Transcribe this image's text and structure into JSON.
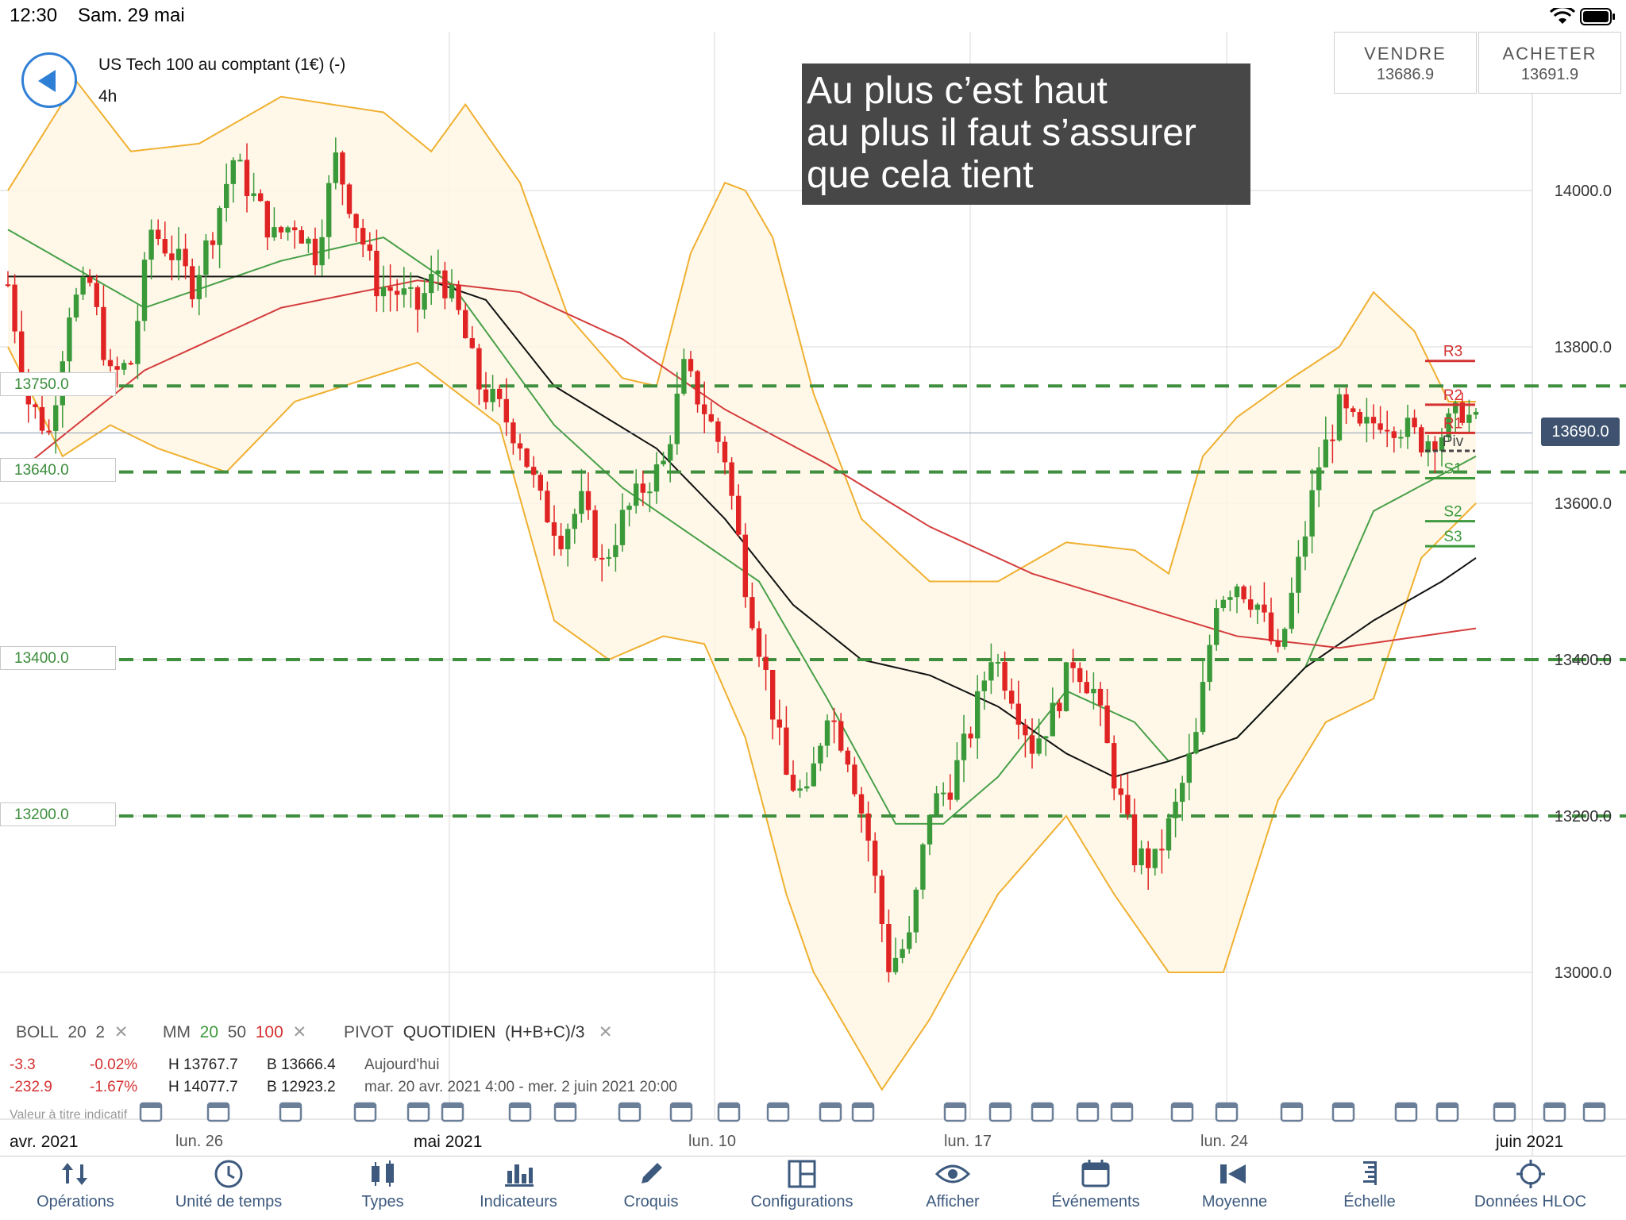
{
  "status_bar": {
    "time": "12:30",
    "date": "Sam. 29 mai"
  },
  "instrument": {
    "name": "US Tech 100 au comptant (1€) (-)",
    "timeframe": "4h"
  },
  "trade": {
    "sell_label": "VENDRE",
    "sell_price": "13686.9",
    "buy_label": "ACHETER",
    "buy_price": "13691.9"
  },
  "annotation": {
    "lines": [
      "Au plus c’est haut",
      "au plus il faut s’assurer",
      "que cela tient"
    ]
  },
  "horizontal_lines": [
    "13750.0",
    "13640.0",
    "13400.0",
    "13200.0"
  ],
  "current_price": "13690.0",
  "pivot_labels": [
    "R3",
    "R2",
    "R1",
    "Piv",
    "S1",
    "S2",
    "S3"
  ],
  "colors": {
    "bull": "#3a9a3a",
    "bear": "#e02424",
    "boll": "#f0b030",
    "mm20": "#48a048",
    "mm50": "#111111",
    "mm100": "#d43c3c",
    "hline": "#3f8f3f",
    "accent": "#2f7fd6"
  },
  "indicators": {
    "boll_label": "BOLL",
    "boll_p1": "20",
    "boll_p2": "2",
    "mm_label": "MM",
    "mm_p1": "20",
    "mm_p2": "50",
    "mm_p3": "100",
    "pivot_label": "PIVOT",
    "pivot_p1": "QUOTIDIEN",
    "pivot_p2": "(H+B+C)/3",
    "remove": "✕"
  },
  "stats": {
    "row1": {
      "chg": "-3.3",
      "pct": "-0.02%",
      "high": "H 13767.7",
      "low": "B 13666.4",
      "period": "Aujourd'hui"
    },
    "row2": {
      "chg": "-232.9",
      "pct": "-1.67%",
      "high": "H 14077.7",
      "low": "B 12923.2",
      "period": "mar. 20 avr. 2021 4:00 - mer. 2 juin 2021 20:00"
    }
  },
  "title_placeholder": "Valeur à titre indicatif",
  "x_axis": {
    "labels": [
      {
        "text": "avr. 2021",
        "bold": true
      },
      {
        "text": "lun. 26",
        "bold": false
      },
      {
        "text": "mai 2021",
        "bold": true
      },
      {
        "text": "lun. 10",
        "bold": false
      },
      {
        "text": "lun. 17",
        "bold": false
      },
      {
        "text": "lun. 24",
        "bold": false
      },
      {
        "text": "juin 2021",
        "bold": true
      }
    ]
  },
  "chart_data": {
    "type": "candlestick",
    "title": "",
    "ylim": [
      12850,
      14250
    ],
    "y_ticks": [
      "14000.0",
      "13800.0",
      "13600.0",
      "13400.0",
      "13200.0",
      "13000.0"
    ],
    "annotations": [
      "Au plus c’est haut au plus il faut s’assurer que cela tient"
    ],
    "close_path": [
      [
        0,
        13880
      ],
      [
        3,
        13730
      ],
      [
        6,
        13690
      ],
      [
        9,
        13850
      ],
      [
        12,
        13880
      ],
      [
        15,
        13760
      ],
      [
        18,
        13780
      ],
      [
        21,
        13950
      ],
      [
        24,
        13920
      ],
      [
        27,
        13880
      ],
      [
        30,
        13950
      ],
      [
        33,
        14040
      ],
      [
        36,
        13990
      ],
      [
        39,
        13940
      ],
      [
        42,
        13960
      ],
      [
        45,
        13920
      ],
      [
        48,
        14040
      ],
      [
        51,
        13960
      ],
      [
        54,
        13880
      ],
      [
        57,
        13870
      ],
      [
        60,
        13850
      ],
      [
        63,
        13900
      ],
      [
        66,
        13840
      ],
      [
        69,
        13750
      ],
      [
        72,
        13720
      ],
      [
        75,
        13680
      ],
      [
        78,
        13600
      ],
      [
        81,
        13560
      ],
      [
        84,
        13600
      ],
      [
        87,
        13520
      ],
      [
        90,
        13580
      ],
      [
        93,
        13620
      ],
      [
        96,
        13650
      ],
      [
        99,
        13770
      ],
      [
        102,
        13720
      ],
      [
        105,
        13660
      ],
      [
        108,
        13500
      ],
      [
        111,
        13380
      ],
      [
        114,
        13250
      ],
      [
        117,
        13220
      ],
      [
        120,
        13340
      ],
      [
        123,
        13280
      ],
      [
        126,
        13170
      ],
      [
        129,
        13010
      ],
      [
        132,
        13040
      ],
      [
        135,
        13210
      ],
      [
        138,
        13240
      ],
      [
        141,
        13310
      ],
      [
        144,
        13410
      ],
      [
        147,
        13360
      ],
      [
        150,
        13290
      ],
      [
        153,
        13330
      ],
      [
        156,
        13400
      ],
      [
        159,
        13360
      ],
      [
        162,
        13250
      ],
      [
        165,
        13150
      ],
      [
        168,
        13140
      ],
      [
        171,
        13210
      ],
      [
        174,
        13300
      ],
      [
        177,
        13480
      ],
      [
        180,
        13500
      ],
      [
        183,
        13470
      ],
      [
        186,
        13400
      ],
      [
        189,
        13520
      ],
      [
        192,
        13650
      ],
      [
        195,
        13720
      ],
      [
        198,
        13690
      ],
      [
        201,
        13710
      ],
      [
        204,
        13700
      ],
      [
        207,
        13680
      ],
      [
        210,
        13690
      ],
      [
        213,
        13720
      ],
      [
        215,
        13700
      ]
    ],
    "moving_averages": [
      {
        "name": "MM 20",
        "path": [
          [
            0,
            13950
          ],
          [
            20,
            13850
          ],
          [
            40,
            13910
          ],
          [
            55,
            13940
          ],
          [
            65,
            13880
          ],
          [
            80,
            13700
          ],
          [
            90,
            13620
          ],
          [
            100,
            13560
          ],
          [
            110,
            13500
          ],
          [
            120,
            13350
          ],
          [
            130,
            13190
          ],
          [
            137,
            13190
          ],
          [
            145,
            13250
          ],
          [
            155,
            13360
          ],
          [
            165,
            13320
          ],
          [
            170,
            13270
          ],
          [
            180,
            13300
          ],
          [
            190,
            13390
          ],
          [
            200,
            13590
          ],
          [
            215,
            13660
          ]
        ]
      },
      {
        "name": "MM 50",
        "path": [
          [
            0,
            13890
          ],
          [
            40,
            13890
          ],
          [
            60,
            13890
          ],
          [
            70,
            13860
          ],
          [
            80,
            13750
          ],
          [
            95,
            13670
          ],
          [
            105,
            13580
          ],
          [
            115,
            13470
          ],
          [
            125,
            13400
          ],
          [
            135,
            13380
          ],
          [
            145,
            13340
          ],
          [
            155,
            13280
          ],
          [
            162,
            13250
          ],
          [
            170,
            13270
          ],
          [
            180,
            13300
          ],
          [
            190,
            13390
          ],
          [
            200,
            13450
          ],
          [
            210,
            13500
          ],
          [
            215,
            13530
          ]
        ]
      },
      {
        "name": "MM 100",
        "path": [
          [
            0,
            13630
          ],
          [
            20,
            13770
          ],
          [
            40,
            13850
          ],
          [
            60,
            13885
          ],
          [
            75,
            13870
          ],
          [
            90,
            13810
          ],
          [
            105,
            13720
          ],
          [
            120,
            13650
          ],
          [
            135,
            13570
          ],
          [
            150,
            13510
          ],
          [
            165,
            13470
          ],
          [
            180,
            13430
          ],
          [
            195,
            13415
          ],
          [
            215,
            13440
          ]
        ]
      }
    ],
    "bollinger": {
      "upper": [
        [
          0,
          14000
        ],
        [
          10,
          14140
        ],
        [
          18,
          14050
        ],
        [
          28,
          14060
        ],
        [
          40,
          14120
        ],
        [
          55,
          14100
        ],
        [
          62,
          14050
        ],
        [
          67,
          14110
        ],
        [
          75,
          14010
        ],
        [
          82,
          13840
        ],
        [
          90,
          13760
        ],
        [
          95,
          13750
        ],
        [
          100,
          13920
        ],
        [
          105,
          14010
        ],
        [
          108,
          14000
        ],
        [
          112,
          13940
        ],
        [
          118,
          13740
        ],
        [
          125,
          13580
        ],
        [
          135,
          13500
        ],
        [
          145,
          13500
        ],
        [
          155,
          13550
        ],
        [
          165,
          13540
        ],
        [
          170,
          13510
        ],
        [
          175,
          13660
        ],
        [
          180,
          13710
        ],
        [
          188,
          13760
        ],
        [
          195,
          13800
        ],
        [
          200,
          13870
        ],
        [
          206,
          13820
        ],
        [
          211,
          13730
        ],
        [
          215,
          13730
        ]
      ],
      "lower": [
        [
          0,
          13800
        ],
        [
          8,
          13660
        ],
        [
          15,
          13700
        ],
        [
          22,
          13670
        ],
        [
          32,
          13640
        ],
        [
          42,
          13730
        ],
        [
          60,
          13780
        ],
        [
          72,
          13700
        ],
        [
          80,
          13450
        ],
        [
          88,
          13400
        ],
        [
          96,
          13430
        ],
        [
          102,
          13420
        ],
        [
          108,
          13300
        ],
        [
          114,
          13100
        ],
        [
          118,
          13000
        ],
        [
          122,
          12940
        ],
        [
          128,
          12850
        ],
        [
          135,
          12940
        ],
        [
          145,
          13100
        ],
        [
          155,
          13200
        ],
        [
          162,
          13100
        ],
        [
          170,
          13000
        ],
        [
          178,
          13000
        ],
        [
          186,
          13220
        ],
        [
          193,
          13320
        ],
        [
          200,
          13350
        ],
        [
          207,
          13530
        ],
        [
          215,
          13600
        ]
      ]
    },
    "pivots": [
      {
        "label": "R3",
        "value": 13782
      },
      {
        "label": "R2",
        "value": 13726
      },
      {
        "label": "R1",
        "value": 13690
      },
      {
        "label": "Piv",
        "value": 13667
      },
      {
        "label": "S1",
        "value": 13632
      },
      {
        "label": "S2",
        "value": 13577
      },
      {
        "label": "S3",
        "value": 13545
      }
    ]
  },
  "tabs": [
    {
      "name": "operations",
      "label": "Opérations"
    },
    {
      "name": "time-unit",
      "label": "Unité de temps"
    },
    {
      "name": "types",
      "label": "Types"
    },
    {
      "name": "indicators",
      "label": "Indicateurs"
    },
    {
      "name": "sketches",
      "label": "Croquis"
    },
    {
      "name": "configurations",
      "label": "Configurations"
    },
    {
      "name": "display",
      "label": "Afficher"
    },
    {
      "name": "events",
      "label": "Événements"
    },
    {
      "name": "average",
      "label": "Moyenne"
    },
    {
      "name": "scale",
      "label": "Échelle"
    },
    {
      "name": "hloc",
      "label": "Données HLOC"
    }
  ]
}
